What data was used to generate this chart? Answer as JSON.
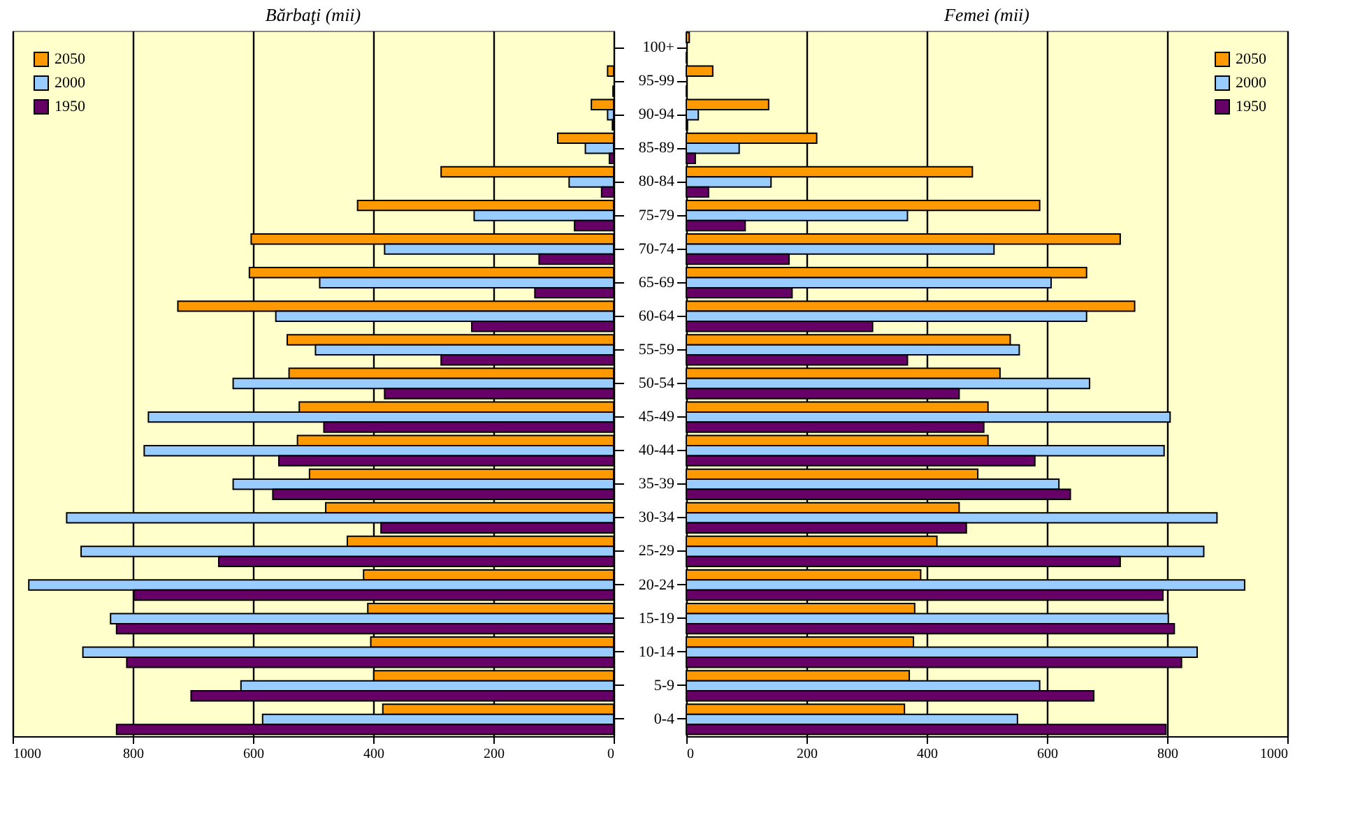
{
  "chart_data": [
    {
      "type": "bar",
      "orientation": "horizontal",
      "title": "Bărbaţi (mii)",
      "categories": [
        null,
        null,
        null,
        null,
        null,
        null,
        null,
        null,
        null,
        null,
        null,
        null,
        null,
        null,
        null,
        null,
        null,
        null,
        null,
        null,
        null
      ],
      "series": [
        {
          "name": "2050",
          "color": "#ff9900",
          "values": [
            null,
            10,
            37,
            93,
            287,
            426,
            603,
            606,
            725,
            543,
            540,
            523,
            526,
            506,
            479,
            443,
            416,
            409,
            404,
            399,
            384
          ]
        },
        {
          "name": "2000",
          "color": "#99ccff",
          "values": [
            null,
            null,
            10,
            47,
            74,
            232,
            381,
            489,
            562,
            496,
            633,
            774,
            781,
            633,
            910,
            886,
            973,
            837,
            883,
            620,
            584
          ]
        },
        {
          "name": "1950",
          "color": "#660066",
          "values": [
            null,
            1,
            2,
            7,
            20,
            65,
            124,
            131,
            236,
            287,
            381,
            482,
            557,
            567,
            387,
            657,
            798,
            827,
            810,
            703,
            827
          ]
        }
      ],
      "xlim": [
        1000,
        0
      ],
      "xticks": [
        1000,
        800,
        600,
        400,
        200,
        0
      ],
      "grid": "x",
      "legend": "top left",
      "tick_labels": "x"
    },
    {
      "type": "bar",
      "orientation": "horizontal",
      "title": "Femei (mii)",
      "categories": [
        "100+",
        "95-99",
        "90-94",
        "85-89",
        "80-84",
        "75-79",
        "70-74",
        "65-69",
        "60-64",
        "55-59",
        "50-54",
        "45-49",
        "40-44",
        "35-39",
        "30-34",
        "25-29",
        "20-24",
        "15-19",
        "10-14",
        "5-9",
        "0-4"
      ],
      "series": [
        {
          "name": "2050",
          "color": "#ff9900",
          "values": [
            5,
            44,
            137,
            217,
            476,
            588,
            722,
            666,
            746,
            539,
            522,
            502,
            502,
            485,
            454,
            417,
            390,
            380,
            378,
            371,
            363
          ]
        },
        {
          "name": "2000",
          "color": "#99ccff",
          "values": [
            null,
            null,
            20,
            88,
            141,
            368,
            512,
            607,
            666,
            554,
            671,
            805,
            795,
            620,
            883,
            861,
            929,
            802,
            850,
            588,
            551
          ]
        },
        {
          "name": "1950",
          "color": "#660066",
          "values": [
            1,
            1,
            2,
            15,
            37,
            98,
            171,
            176,
            310,
            368,
            454,
            495,
            580,
            639,
            466,
            722,
            793,
            812,
            824,
            678,
            798
          ]
        }
      ],
      "xlim": [
        0,
        1000
      ],
      "xticks": [
        0,
        200,
        400,
        600,
        800,
        1000
      ],
      "grid": "x",
      "legend": "top right"
    }
  ]
}
